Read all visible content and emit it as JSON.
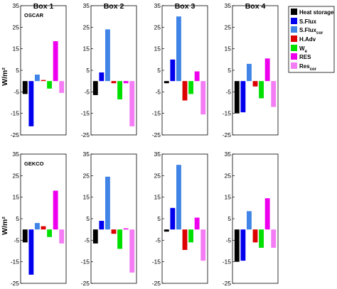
{
  "figure": {
    "box_titles": [
      "Box 1",
      "Box 2",
      "Box 3",
      "Box 4"
    ],
    "ylabel": "W/m²",
    "rows": [
      "OSCAR",
      "GEKCO"
    ]
  },
  "legend": {
    "items": [
      {
        "label": "Heat storage",
        "color": "#000000"
      },
      {
        "label": "S.Flux",
        "color": "#0000ee"
      },
      {
        "label": "S.Flux",
        "sub": "cor",
        "color": "#3f84e6"
      },
      {
        "label": "H.Adv",
        "color": "#dd0000"
      },
      {
        "label": "W",
        "sub": "e",
        "color": "#00e000"
      },
      {
        "label": "RES",
        "color": "#ee00ee"
      },
      {
        "label": "Res",
        "sub": "cor",
        "color": "#f47cf4"
      }
    ]
  },
  "chart_data": {
    "type": "bar",
    "ylim": [
      -25,
      35
    ],
    "yticks": [
      -25,
      -15,
      -5,
      5,
      15,
      25,
      35
    ],
    "grid": false,
    "legend_position": "right",
    "categories": [
      "Heat storage",
      "S.Flux",
      "S.Fluxcor",
      "H.Adv",
      "We",
      "RES",
      "Rescor"
    ],
    "panels": [
      {
        "row": "OSCAR",
        "box": "Box 1",
        "values": [
          -6,
          -21,
          3,
          0.5,
          -3.5,
          18.5,
          -5.5
        ]
      },
      {
        "row": "OSCAR",
        "box": "Box 2",
        "values": [
          -6.5,
          4,
          24,
          -1,
          -8.5,
          -1,
          -21
        ]
      },
      {
        "row": "OSCAR",
        "box": "Box 3",
        "values": [
          -1,
          10,
          30,
          -9,
          -6,
          4.5,
          -15.5
        ]
      },
      {
        "row": "OSCAR",
        "box": "Box 4",
        "values": [
          -15,
          -14.5,
          8,
          -2.5,
          -8,
          10.5,
          -12
        ]
      },
      {
        "row": "GEKCO",
        "box": "Box 1",
        "values": [
          -6,
          -21,
          3,
          1.5,
          -3.5,
          18,
          -6.5
        ]
      },
      {
        "row": "GEKCO",
        "box": "Box 2",
        "values": [
          -6.5,
          4,
          24.5,
          -2,
          -9,
          0.5,
          -20
        ]
      },
      {
        "row": "GEKCO",
        "box": "Box 3",
        "values": [
          -1,
          10,
          30,
          -9.5,
          -6,
          5.5,
          -14.5
        ]
      },
      {
        "row": "GEKCO",
        "box": "Box 4",
        "values": [
          -15,
          -14.5,
          8.5,
          -6,
          -8.5,
          14.5,
          -8.5
        ]
      }
    ]
  }
}
